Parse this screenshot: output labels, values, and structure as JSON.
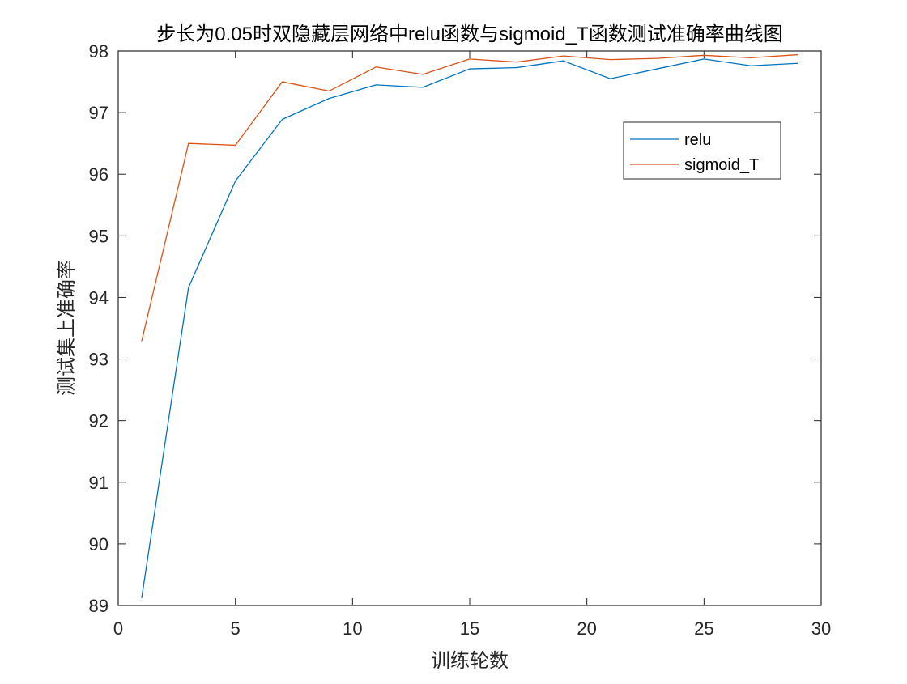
{
  "chart_data": {
    "type": "line",
    "title": "步长为0.05时双隐藏层网络中relu函数与sigmoid_T函数测试准确率曲线图",
    "xlabel": "训练轮数",
    "ylabel": "测试集上准确率",
    "xlim": [
      0,
      30
    ],
    "ylim": [
      89,
      98
    ],
    "xticks": [
      0,
      5,
      10,
      15,
      20,
      25,
      30
    ],
    "yticks": [
      89,
      90,
      91,
      92,
      93,
      94,
      95,
      96,
      97,
      98
    ],
    "grid": false,
    "legend_position": "top-right",
    "x": [
      1,
      3,
      5,
      7,
      9,
      11,
      13,
      15,
      17,
      19,
      21,
      23,
      25,
      27,
      29
    ],
    "series": [
      {
        "name": "relu",
        "color": "#0072BD",
        "values": [
          89.12,
          94.16,
          95.89,
          96.89,
          97.23,
          97.45,
          97.41,
          97.71,
          97.73,
          97.84,
          97.55,
          97.71,
          97.87,
          97.76,
          97.8
        ]
      },
      {
        "name": "sigmoid_T",
        "color": "#D95319",
        "values": [
          93.29,
          96.5,
          96.47,
          97.5,
          97.35,
          97.74,
          97.62,
          97.87,
          97.82,
          97.92,
          97.86,
          97.88,
          97.93,
          97.89,
          97.94
        ]
      }
    ]
  }
}
